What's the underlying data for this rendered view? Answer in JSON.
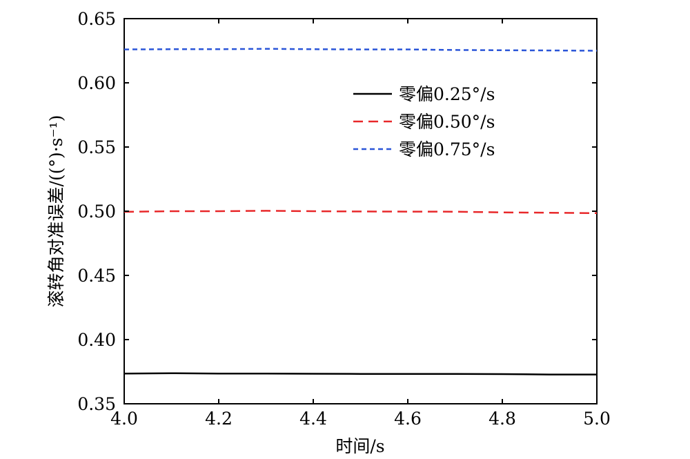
{
  "chart_data": {
    "type": "line",
    "title": "",
    "xlabel": "时间/s",
    "ylabel": "滚转角对准误差/((°)·s⁻¹)",
    "xlim": [
      4.0,
      5.0
    ],
    "ylim": [
      0.35,
      0.65
    ],
    "x_ticks": [
      "4.0",
      "4.2",
      "4.4",
      "4.6",
      "4.8",
      "5.0"
    ],
    "y_ticks": [
      "0.35",
      "0.40",
      "0.45",
      "0.50",
      "0.55",
      "0.60",
      "0.65"
    ],
    "legend_position": "top-right",
    "grid": false,
    "x": [
      4.0,
      4.1,
      4.2,
      4.3,
      4.4,
      4.5,
      4.6,
      4.7,
      4.8,
      4.9,
      5.0
    ],
    "series": [
      {
        "name": "零偏0.25°/s",
        "style": "solid",
        "color": "#000000",
        "values": [
          0.3735,
          0.3738,
          0.3735,
          0.3735,
          0.3734,
          0.3733,
          0.3733,
          0.3732,
          0.3731,
          0.3728,
          0.3728
        ]
      },
      {
        "name": "零偏0.50°/s",
        "style": "dashed",
        "color": "#e8282a",
        "values": [
          0.4995,
          0.5,
          0.5,
          0.5003,
          0.5,
          0.4998,
          0.4997,
          0.4996,
          0.4991,
          0.4988,
          0.4985
        ]
      },
      {
        "name": "零偏0.75°/s",
        "style": "dashed-fine",
        "color": "#2a55d8",
        "values": [
          0.626,
          0.6262,
          0.6262,
          0.6265,
          0.6262,
          0.626,
          0.626,
          0.6256,
          0.6254,
          0.6252,
          0.625
        ]
      }
    ]
  }
}
